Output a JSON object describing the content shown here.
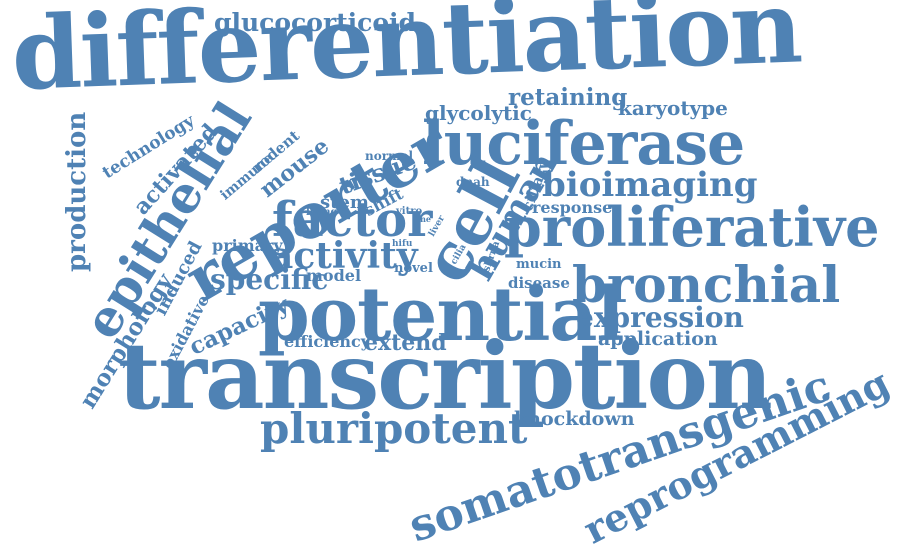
{
  "cloud": {
    "color": "#4f82b4",
    "words": {
      "differentiation": "differentiation",
      "glucocorticoid": "glucocorticoid",
      "retaining": "retaining",
      "karyotype": "karyotype",
      "glycolytic": "glycolytic",
      "luciferase": "luciferase",
      "reporter": "reporter",
      "epithelial": "epithelial",
      "production": "production",
      "technology": "technology",
      "activated": "activated",
      "immune": "immune",
      "rodent": "rodent",
      "mouse": "mouse",
      "normal": "normal",
      "tissue": "tissue",
      "dnah": "dnah",
      "ciliary": "ciliary",
      "bioimaging": "bioimaging",
      "stem": "stem",
      "shift": "shift",
      "living": "living",
      "vitro": "vitro",
      "line": "line",
      "liver": "liver",
      "cell": "cell",
      "human": "human",
      "response": "response",
      "factor": "factor",
      "proliferative": "proliferative",
      "primary": "primary",
      "activity": "activity",
      "hifu": "hifu",
      "cilia": "cilia",
      "shrna": "shrna",
      "mucin": "mucin",
      "novel": "novel",
      "induced": "induced",
      "specific": "specific",
      "model": "model",
      "disease": "disease",
      "bronchial": "bronchial",
      "potential": "potential",
      "capacity": "capacity",
      "oxidative": "oxidative",
      "expression": "expression",
      "morphology": "morphology",
      "efficiency": "efficiency",
      "extend": "extend",
      "application": "application",
      "transcription": "transcription",
      "pluripotent": "pluripotent",
      "knockdown": "knockdown",
      "somatotransgenic": "somatotransgenic",
      "reprogramming": "reprogramming"
    }
  }
}
